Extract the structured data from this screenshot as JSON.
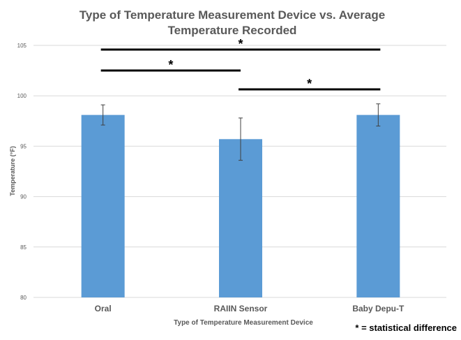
{
  "chart_data": {
    "type": "bar",
    "title": "Type of Temperature Measurement Device vs. Average Temperature Recorded",
    "title_lines": [
      "Type of Temperature Measurement Device vs. Average",
      "Temperature Recorded"
    ],
    "xlabel": "Type of Temperature Measurement Device",
    "ylabel": "Temperature (°F)",
    "ylim": [
      80,
      105
    ],
    "yticks": [
      80,
      85,
      90,
      95,
      100,
      105
    ],
    "grid": true,
    "categories": [
      "Oral",
      "RAIIN Sensor",
      "Baby Depu-T"
    ],
    "values": [
      98.1,
      95.7,
      98.1
    ],
    "error": [
      1.0,
      2.1,
      1.1
    ],
    "bar_color": "#5b9bd5",
    "significance": [
      {
        "from": "Oral",
        "to": "Baby Depu-T",
        "label": "*"
      },
      {
        "from": "Oral",
        "to": "RAIIN Sensor",
        "label": "*"
      },
      {
        "from": "RAIIN Sensor",
        "to": "Baby Depu-T",
        "label": "*"
      }
    ],
    "annotation": "* = statistical difference"
  }
}
